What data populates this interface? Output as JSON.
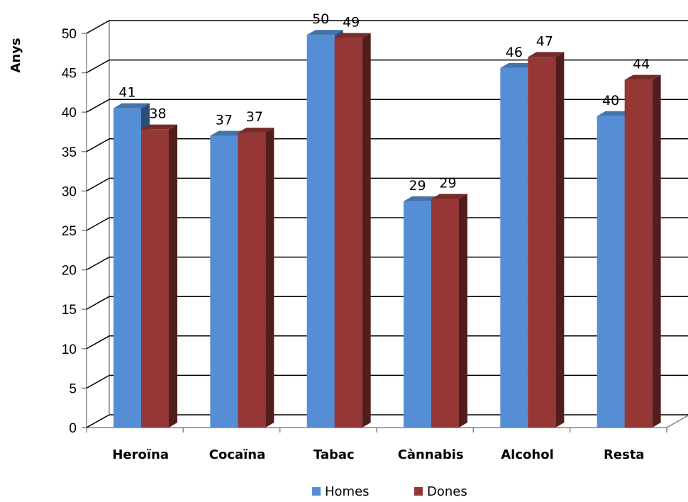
{
  "chart_data": {
    "type": "bar",
    "title": "",
    "xlabel": "",
    "ylabel": "Anys",
    "ylim": [
      0,
      50
    ],
    "ytick_step": 5,
    "grid": true,
    "three_d": true,
    "legend_position": "bottom",
    "categories": [
      "Heroïna",
      "Cocaïna",
      "Tabac",
      "Cànnabis",
      "Alcohol",
      "Resta"
    ],
    "series": [
      {
        "name": "Homes",
        "color": "#558ED5",
        "values": [
          40.5,
          37,
          49.8,
          28.7,
          45.6,
          39.5
        ],
        "labels": [
          "41",
          "37",
          "50",
          "29",
          "46",
          "40"
        ]
      },
      {
        "name": "Dones",
        "color": "#953735",
        "values": [
          37.8,
          37.4,
          49.4,
          29.0,
          47.0,
          44.1
        ],
        "labels": [
          "38",
          "37",
          "49",
          "29",
          "47",
          "44"
        ]
      }
    ]
  }
}
